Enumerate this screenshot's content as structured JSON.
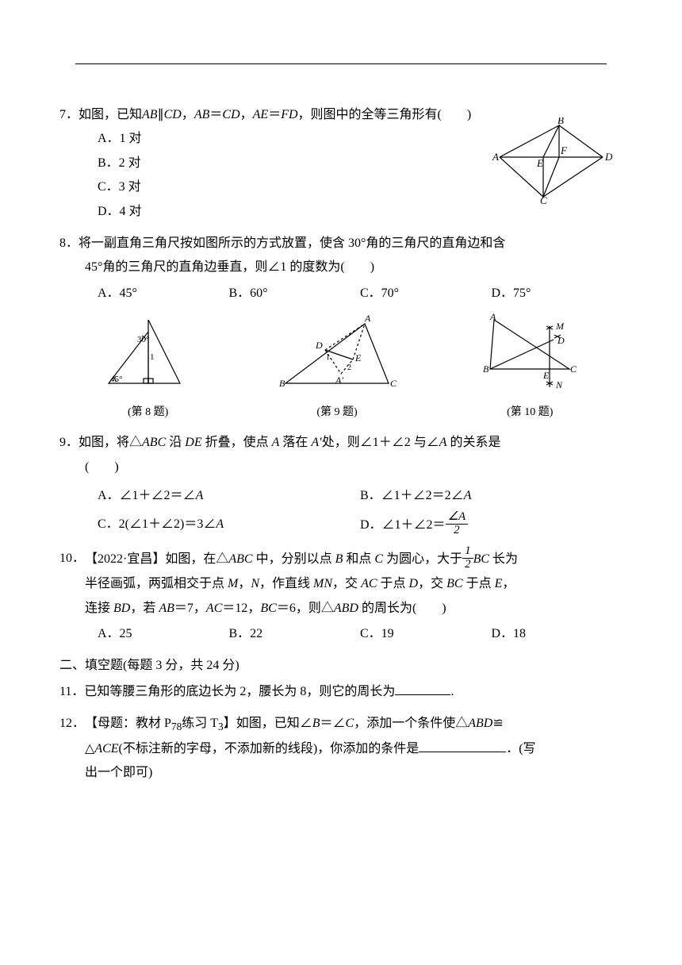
{
  "q7": {
    "num": "7．",
    "stem": "如图，已知<i>AB</i>∥<i>CD</i>，<i>AB</i>＝<i>CD</i>，<i>AE</i>＝<i>FD</i>，则图中的全等三角形有(　　)",
    "opts": {
      "a": "A．1 对",
      "b": "B．2 对",
      "c": "C．3 对",
      "d": "D．4 对"
    },
    "fig": {
      "labels": [
        "A",
        "B",
        "C",
        "D",
        "E",
        "F"
      ]
    }
  },
  "q8": {
    "num": "8．",
    "stem1": "将一副直角三角尺按如图所示的方式放置，使含 30°角的三角尺的直角边和含",
    "stem2": "45°角的三角尺的直角边垂直，则∠1 的度数为(　　)",
    "opts": {
      "a": "A．45°",
      "b": "B．60°",
      "c": "C．70°",
      "d": "D．75°"
    },
    "figs": {
      "f8": {
        "cap": "(第 8 题)",
        "labels": [
          "30°",
          "45°",
          "1"
        ]
      },
      "f9": {
        "cap": "(第 9 题)",
        "labels": [
          "A",
          "B",
          "C",
          "D",
          "E",
          "A′",
          "1",
          "2"
        ]
      },
      "f10": {
        "cap": "(第 10 题)",
        "labels": [
          "A",
          "B",
          "C",
          "D",
          "E",
          "M",
          "N"
        ]
      }
    }
  },
  "q9": {
    "num": "9．",
    "stem1": "如图，将△<i>ABC</i> 沿 <i>DE</i> 折叠，使点 <i>A</i> 落在 <i>A′</i>处，则∠1＋∠2 与∠<i>A</i> 的关系是",
    "stem2": "(　　)",
    "opts": {
      "a": "A．∠1＋∠2＝∠<i>A</i>",
      "b": "B．∠1＋∠2＝2∠<i>A</i>",
      "c": "C．2(∠1＋∠2)＝3∠<i>A</i>",
      "d_prefix": "D．∠1＋∠2＝",
      "d_frac_num": "∠A",
      "d_frac_den": "2"
    }
  },
  "q10": {
    "num": "10．",
    "stem1_pre": "【2022·宜昌】如图，在△<i>ABC</i> 中，分别以点 <i>B</i> 和点 <i>C</i> 为圆心，大于",
    "stem1_frac_num": "1",
    "stem1_frac_den": "2",
    "stem1_post": "<i>BC</i> 长为",
    "stem2": "半径画弧，两弧相交于点 <i>M</i>，<i>N</i>，作直线 <i>MN</i>，交 <i>AC</i> 于点 <i>D</i>，交 <i>BC</i> 于点 <i>E</i>，",
    "stem3": "连接 <i>BD</i>，若 <i>AB</i>＝7，<i>AC</i>＝12，<i>BC</i>＝6，则△<i>ABD</i> 的周长为(　　)",
    "opts": {
      "a": "A．25",
      "b": "B．22",
      "c": "C．19",
      "d": "D．18"
    }
  },
  "section2": "二、填空题(每题 3 分，共 24 分)",
  "q11": {
    "num": "11．",
    "stem": "已知等腰三角形的底边长为 2，腰长为 8，则它的周长为",
    "end": "."
  },
  "q12": {
    "num": "12．",
    "stem1": "【母题：教材 P<sub>78</sub>练习 T<sub>3</sub>】如图，已知∠<i>B</i>＝∠<i>C</i>，添加一个条件使△<i>ABD</i>≌",
    "stem2_pre": "△<i>ACE</i>(不标注新的字母，不添加新的线段)，你添加的条件是",
    "stem2_post": "．(写",
    "stem3": "出一个即可)"
  }
}
